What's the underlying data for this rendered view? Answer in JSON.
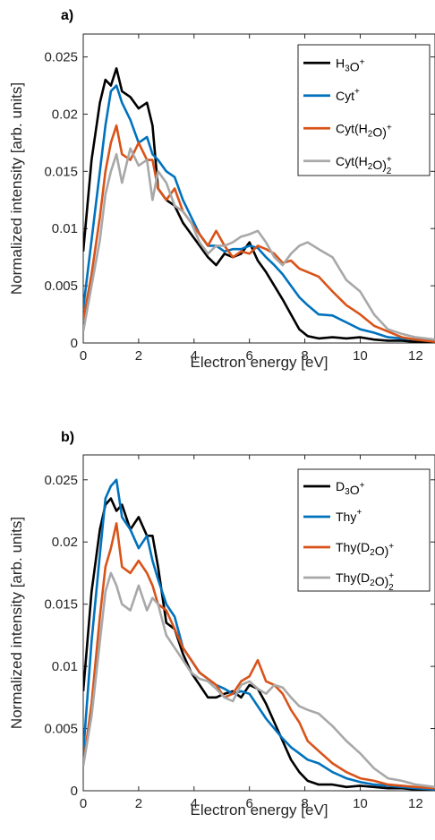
{
  "chart_data": [
    {
      "type": "line",
      "panel_label": "a)",
      "xlabel": "Electron energy [eV]",
      "ylabel": "Normalized intensity [arb. units]",
      "xlim": [
        0,
        12.7
      ],
      "ylim": [
        0,
        0.027
      ],
      "xticks": [
        0,
        2,
        4,
        6,
        8,
        10,
        12
      ],
      "xtick_labels": [
        "0",
        "2",
        "4",
        "6",
        "8",
        "10",
        "12"
      ],
      "yticks": [
        0,
        0.005,
        0.01,
        0.015,
        0.02,
        0.025
      ],
      "ytick_labels": [
        "0",
        "0.005",
        "0.01",
        "0.015",
        "0.02",
        "0.025"
      ],
      "grid": false,
      "legend_position": "top-right",
      "series": [
        {
          "name": "H3O+",
          "legend": {
            "base": "H",
            "parts": [
              [
                "sub",
                "3"
              ],
              [
                "text",
                "O"
              ],
              [
                "sup",
                "+"
              ]
            ]
          },
          "color": "#000000",
          "x": [
            0,
            0.3,
            0.6,
            0.8,
            1.0,
            1.2,
            1.4,
            1.7,
            2.0,
            2.3,
            2.5,
            2.7,
            3.0,
            3.3,
            3.6,
            3.9,
            4.2,
            4.5,
            4.8,
            5.1,
            5.4,
            5.7,
            6.0,
            6.3,
            6.6,
            6.9,
            7.2,
            7.5,
            7.8,
            8.1,
            8.5,
            9.0,
            9.5,
            10,
            10.5,
            11,
            11.5,
            12,
            12.7
          ],
          "y": [
            0.008,
            0.016,
            0.021,
            0.023,
            0.0225,
            0.024,
            0.022,
            0.0215,
            0.0205,
            0.021,
            0.019,
            0.0135,
            0.0125,
            0.012,
            0.0105,
            0.0095,
            0.0085,
            0.0075,
            0.0068,
            0.0078,
            0.0075,
            0.0078,
            0.0088,
            0.0072,
            0.0062,
            0.005,
            0.0038,
            0.0025,
            0.0012,
            0.0006,
            0.0004,
            0.0005,
            0.0004,
            0.0005,
            0.0003,
            0.0002,
            0.0002,
            0.0001,
            0.0001
          ]
        },
        {
          "name": "Cyt+",
          "legend": {
            "base": "Cyt",
            "parts": [
              [
                "sup",
                "+"
              ]
            ]
          },
          "color": "#0072BD",
          "x": [
            0,
            0.3,
            0.6,
            0.8,
            1.0,
            1.2,
            1.4,
            1.7,
            2.0,
            2.3,
            2.5,
            2.7,
            3.0,
            3.3,
            3.6,
            3.9,
            4.2,
            4.5,
            4.8,
            5.1,
            5.4,
            5.7,
            6.0,
            6.3,
            6.6,
            6.9,
            7.2,
            7.5,
            7.8,
            8.1,
            8.5,
            9.0,
            9.5,
            10,
            10.5,
            11,
            11.5,
            12,
            12.7
          ],
          "y": [
            0.003,
            0.009,
            0.015,
            0.019,
            0.022,
            0.0225,
            0.021,
            0.0195,
            0.0175,
            0.018,
            0.0165,
            0.016,
            0.015,
            0.0145,
            0.0125,
            0.011,
            0.0095,
            0.0085,
            0.0085,
            0.008,
            0.0082,
            0.0082,
            0.0085,
            0.0083,
            0.0075,
            0.0068,
            0.006,
            0.005,
            0.004,
            0.0033,
            0.0025,
            0.0024,
            0.0018,
            0.0012,
            0.0009,
            0.0005,
            0.0004,
            0.0003,
            0.0002
          ]
        },
        {
          "name": "Cyt(H2O)+",
          "legend": {
            "base": "Cyt(H",
            "parts": [
              [
                "sub",
                "2"
              ],
              [
                "text",
                "O)"
              ],
              [
                "sup",
                "+"
              ]
            ]
          },
          "color": "#D95319",
          "x": [
            0,
            0.3,
            0.6,
            0.8,
            1.0,
            1.2,
            1.4,
            1.7,
            2.0,
            2.3,
            2.5,
            2.7,
            3.0,
            3.3,
            3.6,
            3.9,
            4.2,
            4.5,
            4.8,
            5.1,
            5.4,
            5.7,
            6.0,
            6.3,
            6.6,
            6.9,
            7.2,
            7.5,
            7.8,
            8.1,
            8.5,
            9.0,
            9.5,
            10,
            10.5,
            11,
            11.5,
            12,
            12.7
          ],
          "y": [
            0.002,
            0.006,
            0.011,
            0.015,
            0.0175,
            0.019,
            0.0165,
            0.016,
            0.0175,
            0.016,
            0.016,
            0.0135,
            0.0125,
            0.0135,
            0.0115,
            0.0105,
            0.0095,
            0.0085,
            0.0098,
            0.0085,
            0.0075,
            0.008,
            0.0078,
            0.0085,
            0.0082,
            0.0078,
            0.007,
            0.0072,
            0.0065,
            0.0062,
            0.0058,
            0.0045,
            0.0033,
            0.0025,
            0.0015,
            0.001,
            0.0005,
            0.0003,
            0.0001
          ]
        },
        {
          "name": "Cyt(H2O)2+",
          "legend": {
            "base": "Cyt(H",
            "parts": [
              [
                "sub",
                "2"
              ],
              [
                "text",
                "O)"
              ],
              [
                "subsup",
                "2",
                "+"
              ]
            ]
          },
          "color": "#A8A8A8",
          "x": [
            0,
            0.3,
            0.6,
            0.8,
            1.0,
            1.2,
            1.4,
            1.7,
            2.0,
            2.3,
            2.5,
            2.7,
            3.0,
            3.3,
            3.6,
            3.9,
            4.2,
            4.5,
            4.8,
            5.1,
            5.4,
            5.7,
            6.0,
            6.3,
            6.6,
            6.9,
            7.2,
            7.5,
            7.8,
            8.1,
            8.5,
            9.0,
            9.5,
            10,
            10.5,
            11,
            11.5,
            12,
            12.7
          ],
          "y": [
            0.001,
            0.005,
            0.009,
            0.013,
            0.015,
            0.0165,
            0.014,
            0.017,
            0.0155,
            0.016,
            0.0125,
            0.015,
            0.014,
            0.012,
            0.0115,
            0.0105,
            0.0088,
            0.0078,
            0.0085,
            0.0085,
            0.0088,
            0.0093,
            0.0095,
            0.0098,
            0.0088,
            0.0075,
            0.0068,
            0.0078,
            0.0085,
            0.0088,
            0.0082,
            0.0075,
            0.0055,
            0.0045,
            0.0025,
            0.0012,
            0.0008,
            0.0005,
            0.0003
          ]
        }
      ]
    },
    {
      "type": "line",
      "panel_label": "b)",
      "xlabel": "Electron energy [eV]",
      "ylabel": "Normalized intensity [arb. units]",
      "xlim": [
        0,
        12.7
      ],
      "ylim": [
        0,
        0.027
      ],
      "xticks": [
        0,
        2,
        4,
        6,
        8,
        10,
        12
      ],
      "xtick_labels": [
        "0",
        "2",
        "4",
        "6",
        "8",
        "10",
        "12"
      ],
      "yticks": [
        0,
        0.005,
        0.01,
        0.015,
        0.02,
        0.025
      ],
      "ytick_labels": [
        "0",
        "0.005",
        "0.01",
        "0.015",
        "0.02",
        "0.025"
      ],
      "grid": false,
      "legend_position": "top-right",
      "series": [
        {
          "name": "D3O+",
          "legend": {
            "base": "D",
            "parts": [
              [
                "sub",
                "3"
              ],
              [
                "text",
                "O"
              ],
              [
                "sup",
                "+"
              ]
            ]
          },
          "color": "#000000",
          "x": [
            0,
            0.3,
            0.6,
            0.8,
            1.0,
            1.2,
            1.4,
            1.7,
            2.0,
            2.3,
            2.5,
            2.7,
            3.0,
            3.3,
            3.6,
            3.9,
            4.2,
            4.5,
            4.8,
            5.1,
            5.4,
            5.7,
            6.0,
            6.3,
            6.6,
            6.9,
            7.2,
            7.5,
            7.8,
            8.1,
            8.5,
            9.0,
            9.5,
            10,
            10.5,
            11,
            11.5,
            12,
            12.7
          ],
          "y": [
            0.008,
            0.016,
            0.021,
            0.023,
            0.0235,
            0.0225,
            0.023,
            0.021,
            0.022,
            0.0205,
            0.0205,
            0.018,
            0.0135,
            0.013,
            0.011,
            0.0095,
            0.0085,
            0.0075,
            0.0075,
            0.0078,
            0.008,
            0.0075,
            0.0085,
            0.0082,
            0.007,
            0.0055,
            0.004,
            0.0025,
            0.0015,
            0.0008,
            0.0005,
            0.0005,
            0.0003,
            0.0004,
            0.0003,
            0.0002,
            0.0002,
            0.0001,
            0.0001
          ]
        },
        {
          "name": "Thy+",
          "legend": {
            "base": "Thy",
            "parts": [
              [
                "sup",
                "+"
              ]
            ]
          },
          "color": "#0072BD",
          "x": [
            0,
            0.3,
            0.6,
            0.8,
            1.0,
            1.2,
            1.4,
            1.7,
            2.0,
            2.3,
            2.5,
            2.7,
            3.0,
            3.3,
            3.6,
            3.9,
            4.2,
            4.5,
            4.8,
            5.1,
            5.4,
            5.7,
            6.0,
            6.3,
            6.6,
            6.9,
            7.2,
            7.5,
            7.8,
            8.1,
            8.5,
            9.0,
            9.5,
            10,
            10.5,
            11,
            11.5,
            12,
            12.7
          ],
          "y": [
            0.003,
            0.012,
            0.019,
            0.0235,
            0.0245,
            0.025,
            0.022,
            0.021,
            0.0195,
            0.0205,
            0.0185,
            0.017,
            0.015,
            0.014,
            0.0115,
            0.0105,
            0.0095,
            0.009,
            0.0085,
            0.0082,
            0.0078,
            0.008,
            0.0078,
            0.0068,
            0.0058,
            0.005,
            0.0042,
            0.0035,
            0.003,
            0.0025,
            0.0022,
            0.0015,
            0.001,
            0.0007,
            0.0005,
            0.0004,
            0.0003,
            0.0002,
            0.0001
          ]
        },
        {
          "name": "Thy(D2O)+",
          "legend": {
            "base": "Thy(D",
            "parts": [
              [
                "sub",
                "2"
              ],
              [
                "text",
                "O)"
              ],
              [
                "sup",
                "+"
              ]
            ]
          },
          "color": "#D95319",
          "x": [
            0,
            0.3,
            0.6,
            0.8,
            1.0,
            1.2,
            1.4,
            1.7,
            2.0,
            2.3,
            2.5,
            2.7,
            3.0,
            3.3,
            3.6,
            3.9,
            4.2,
            4.5,
            4.8,
            5.1,
            5.4,
            5.7,
            6.0,
            6.3,
            6.6,
            6.9,
            7.2,
            7.5,
            7.8,
            8.1,
            8.5,
            9.0,
            9.5,
            10,
            10.5,
            11,
            11.5,
            12,
            12.7
          ],
          "y": [
            0.002,
            0.007,
            0.014,
            0.018,
            0.0195,
            0.0215,
            0.018,
            0.0175,
            0.0185,
            0.0175,
            0.0165,
            0.015,
            0.0145,
            0.013,
            0.0115,
            0.0105,
            0.0095,
            0.009,
            0.0085,
            0.0075,
            0.0078,
            0.0088,
            0.0092,
            0.0105,
            0.0088,
            0.0085,
            0.0078,
            0.0065,
            0.0055,
            0.004,
            0.0032,
            0.0022,
            0.0015,
            0.001,
            0.0008,
            0.0005,
            0.0004,
            0.0003,
            0.0002
          ]
        },
        {
          "name": "Thy(D2O)2+",
          "legend": {
            "base": "Thy(D",
            "parts": [
              [
                "sub",
                "2"
              ],
              [
                "text",
                "O)"
              ],
              [
                "subsup",
                "2",
                "+"
              ]
            ]
          },
          "color": "#A8A8A8",
          "x": [
            0,
            0.3,
            0.6,
            0.8,
            1.0,
            1.2,
            1.4,
            1.7,
            2.0,
            2.3,
            2.5,
            2.7,
            3.0,
            3.3,
            3.6,
            3.9,
            4.2,
            4.5,
            4.8,
            5.1,
            5.4,
            5.7,
            6.0,
            6.3,
            6.6,
            6.9,
            7.2,
            7.5,
            7.8,
            8.1,
            8.5,
            9.0,
            9.5,
            10,
            10.5,
            11,
            11.5,
            12,
            12.7
          ],
          "y": [
            0.002,
            0.006,
            0.012,
            0.016,
            0.0175,
            0.0165,
            0.015,
            0.0145,
            0.0165,
            0.0145,
            0.0155,
            0.015,
            0.0125,
            0.0115,
            0.0105,
            0.0095,
            0.009,
            0.0088,
            0.0082,
            0.0075,
            0.0072,
            0.0085,
            0.0088,
            0.0082,
            0.0078,
            0.0085,
            0.0083,
            0.0075,
            0.0068,
            0.0065,
            0.0062,
            0.0052,
            0.004,
            0.003,
            0.0018,
            0.001,
            0.0008,
            0.0005,
            0.0003
          ]
        }
      ]
    }
  ]
}
